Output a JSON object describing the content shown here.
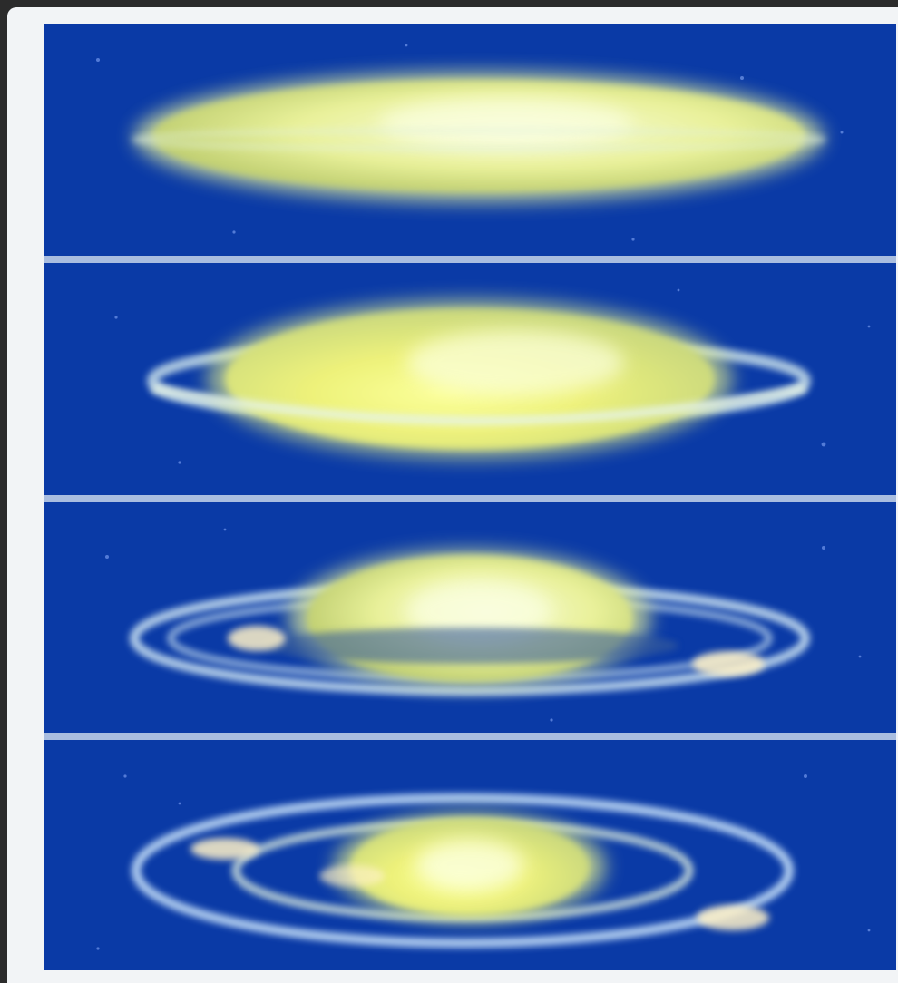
{
  "figure": {
    "background_color": "#0a3aa6",
    "divider_color": "#a9bde0",
    "planet_color": "#f3f7c0",
    "planet_core_color": "#fbffe0",
    "ring_color": "#dff2ff",
    "panel_count": 4
  },
  "panels": [
    {
      "stage": 1,
      "ring_visibility": "none"
    },
    {
      "stage": 2,
      "ring_visibility": "thin"
    },
    {
      "stage": 3,
      "ring_visibility": "open"
    },
    {
      "stage": 4,
      "ring_visibility": "wide"
    }
  ]
}
